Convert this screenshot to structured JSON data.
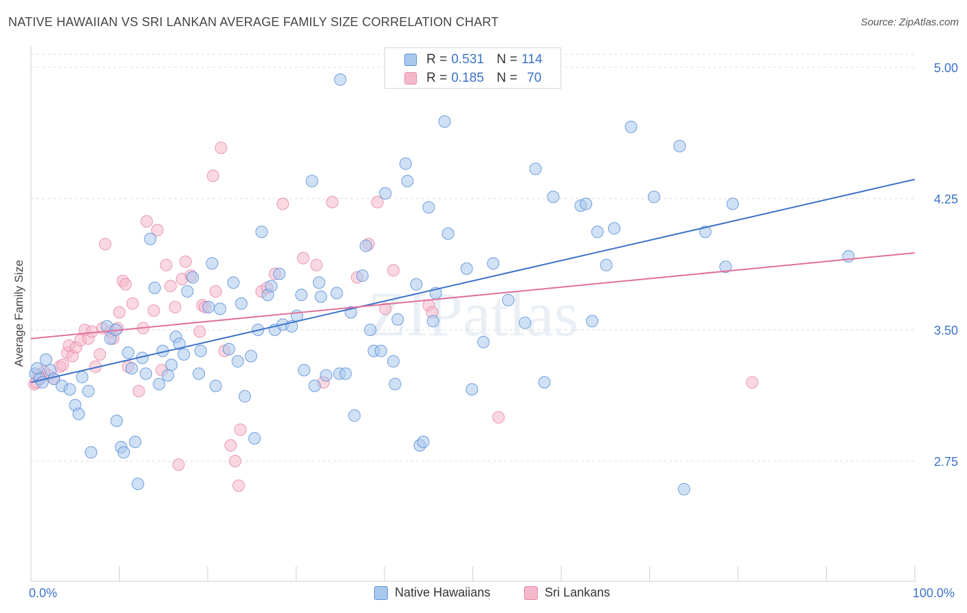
{
  "title": "NATIVE HAWAIIAN VS SRI LANKAN AVERAGE FAMILY SIZE CORRELATION CHART",
  "source": "Source: ZipAtlas.com",
  "legend_top": {
    "rows": [
      {
        "r_label": "R =",
        "r_value": "0.531",
        "n_label": "N =",
        "n_value": "114"
      },
      {
        "r_label": "R =",
        "r_value": "0.185",
        "n_label": "N =",
        "n_value": "70"
      }
    ]
  },
  "legend_bottom": [
    "Native Hawaiians",
    "Sri Lankans"
  ],
  "colors": {
    "blue_fill": "#a9c8ee",
    "blue_stroke": "#5b8fd6",
    "blue_line": "#3b72c9",
    "pink_fill": "#f5b8cb",
    "pink_stroke": "#e58aa7",
    "pink_line": "#e0709a",
    "axis_text": "#3b72c9"
  },
  "chart_data": {
    "type": "scatter",
    "title": "NATIVE HAWAIIAN VS SRI LANKAN AVERAGE FAMILY SIZE CORRELATION CHART",
    "xlabel": "",
    "ylabel": "Average Family Size",
    "x_tick_labels": [
      "0.0%",
      "100.0%"
    ],
    "xlim": [
      0,
      100
    ],
    "ylim": [
      2.0,
      5.1
    ],
    "y_ticks": [
      2.75,
      3.5,
      4.25,
      5.0
    ],
    "y_tick_labels": [
      "2.75",
      "3.50",
      "4.25",
      "5.00"
    ],
    "grid": "horizontal dashed",
    "legend_position": "top-center",
    "watermark": "ZIPatlas",
    "series": [
      {
        "name": "Native Hawaiians",
        "R": 0.531,
        "N": 114,
        "trend": {
          "x": [
            0,
            100
          ],
          "y": [
            3.2,
            4.36
          ]
        },
        "points": [
          [
            0.5,
            3.25
          ],
          [
            0.7,
            3.28
          ],
          [
            1,
            3.22
          ],
          [
            1.3,
            3.2
          ],
          [
            1.7,
            3.33
          ],
          [
            2.2,
            3.27
          ],
          [
            2.6,
            3.22
          ],
          [
            3.5,
            3.18
          ],
          [
            4.4,
            3.16
          ],
          [
            5,
            3.07
          ],
          [
            5.4,
            3.02
          ],
          [
            5.8,
            3.23
          ],
          [
            6.5,
            3.15
          ],
          [
            6.8,
            2.8
          ],
          [
            8.6,
            3.52
          ],
          [
            9,
            3.45
          ],
          [
            9.6,
            3.5
          ],
          [
            9.7,
            2.98
          ],
          [
            10.2,
            2.83
          ],
          [
            10.5,
            2.8
          ],
          [
            11,
            3.37
          ],
          [
            11.4,
            3.28
          ],
          [
            11.8,
            2.86
          ],
          [
            12.1,
            2.62
          ],
          [
            12.6,
            3.34
          ],
          [
            13,
            3.25
          ],
          [
            13.5,
            4.02
          ],
          [
            14,
            3.74
          ],
          [
            14.5,
            3.19
          ],
          [
            14.9,
            3.38
          ],
          [
            15.5,
            3.24
          ],
          [
            15.9,
            3.3
          ],
          [
            16.4,
            3.46
          ],
          [
            16.8,
            3.42
          ],
          [
            17.3,
            3.36
          ],
          [
            17.7,
            3.72
          ],
          [
            18.3,
            3.8
          ],
          [
            19,
            3.25
          ],
          [
            19.2,
            3.38
          ],
          [
            20.1,
            3.63
          ],
          [
            20.5,
            3.88
          ],
          [
            20.9,
            3.18
          ],
          [
            21.4,
            3.62
          ],
          [
            22.4,
            3.39
          ],
          [
            22.9,
            3.77
          ],
          [
            23.4,
            3.32
          ],
          [
            23.8,
            3.65
          ],
          [
            24.2,
            3.12
          ],
          [
            24.9,
            3.35
          ],
          [
            25.3,
            2.88
          ],
          [
            25.7,
            3.5
          ],
          [
            26.1,
            4.06
          ],
          [
            26.8,
            3.7
          ],
          [
            27.2,
            3.75
          ],
          [
            27.6,
            3.5
          ],
          [
            28.1,
            3.82
          ],
          [
            28.5,
            3.53
          ],
          [
            29.5,
            3.52
          ],
          [
            30.1,
            3.58
          ],
          [
            30.6,
            3.7
          ],
          [
            30.9,
            3.27
          ],
          [
            31.8,
            4.35
          ],
          [
            32.1,
            3.18
          ],
          [
            32.6,
            3.77
          ],
          [
            32.8,
            3.69
          ],
          [
            33.4,
            3.24
          ],
          [
            34.6,
            3.71
          ],
          [
            34.9,
            3.25
          ],
          [
            35,
            4.93
          ],
          [
            35.6,
            3.25
          ],
          [
            36.2,
            3.6
          ],
          [
            36.6,
            3.01
          ],
          [
            37.5,
            3.81
          ],
          [
            37.9,
            3.98
          ],
          [
            38.4,
            3.5
          ],
          [
            38.8,
            3.38
          ],
          [
            39.6,
            3.38
          ],
          [
            40.1,
            4.28
          ],
          [
            41,
            3.32
          ],
          [
            41.2,
            3.19
          ],
          [
            41.5,
            3.56
          ],
          [
            42.4,
            4.45
          ],
          [
            42.6,
            4.35
          ],
          [
            43.6,
            3.76
          ],
          [
            44,
            2.84
          ],
          [
            44.4,
            2.86
          ],
          [
            45,
            4.2
          ],
          [
            45.5,
            3.55
          ],
          [
            45.8,
            3.71
          ],
          [
            46.8,
            4.69
          ],
          [
            47.2,
            4.05
          ],
          [
            49.3,
            3.85
          ],
          [
            49.9,
            3.16
          ],
          [
            51.2,
            3.43
          ],
          [
            52.3,
            3.88
          ],
          [
            54,
            3.67
          ],
          [
            55.9,
            3.54
          ],
          [
            57.1,
            4.42
          ],
          [
            58.1,
            3.2
          ],
          [
            59.1,
            4.26
          ],
          [
            62.2,
            4.21
          ],
          [
            62.8,
            4.22
          ],
          [
            63.5,
            3.55
          ],
          [
            64.1,
            4.06
          ],
          [
            65.1,
            3.87
          ],
          [
            66,
            4.08
          ],
          [
            67.9,
            4.66
          ],
          [
            70.5,
            4.26
          ],
          [
            73.4,
            4.55
          ],
          [
            73.9,
            2.59
          ],
          [
            76.3,
            4.06
          ],
          [
            78.6,
            3.86
          ],
          [
            79.4,
            4.22
          ],
          [
            92.5,
            3.92
          ]
        ]
      },
      {
        "name": "Sri Lankans",
        "R": 0.185,
        "N": 70,
        "trend": {
          "x": [
            0,
            100
          ],
          "y": [
            3.45,
            3.94
          ]
        },
        "points": [
          [
            0.4,
            3.19
          ],
          [
            0.6,
            3.2
          ],
          [
            0.8,
            3.24
          ],
          [
            1.1,
            3.23
          ],
          [
            1.5,
            3.26
          ],
          [
            2,
            3.24
          ],
          [
            2.6,
            3.22
          ],
          [
            3.3,
            3.29
          ],
          [
            3.6,
            3.3
          ],
          [
            4.1,
            3.37
          ],
          [
            4.3,
            3.41
          ],
          [
            4.7,
            3.35
          ],
          [
            5.1,
            3.4
          ],
          [
            5.6,
            3.44
          ],
          [
            6.1,
            3.5
          ],
          [
            6.5,
            3.45
          ],
          [
            6.9,
            3.49
          ],
          [
            7.3,
            3.29
          ],
          [
            7.8,
            3.36
          ],
          [
            8.1,
            3.51
          ],
          [
            8.4,
            3.99
          ],
          [
            9,
            3.49
          ],
          [
            9.3,
            3.45
          ],
          [
            9.8,
            3.51
          ],
          [
            10,
            3.6
          ],
          [
            10.4,
            3.78
          ],
          [
            10.7,
            3.76
          ],
          [
            11,
            3.29
          ],
          [
            11.5,
            3.65
          ],
          [
            12.2,
            3.15
          ],
          [
            12.7,
            3.51
          ],
          [
            13.1,
            4.12
          ],
          [
            13.9,
            3.61
          ],
          [
            14.3,
            4.07
          ],
          [
            14.8,
            3.27
          ],
          [
            15.3,
            3.87
          ],
          [
            15.8,
            3.75
          ],
          [
            16.3,
            3.63
          ],
          [
            16.7,
            2.73
          ],
          [
            17.1,
            3.79
          ],
          [
            17.5,
            3.89
          ],
          [
            18.1,
            3.81
          ],
          [
            19.1,
            3.49
          ],
          [
            19.4,
            3.64
          ],
          [
            19.7,
            3.63
          ],
          [
            20.6,
            4.38
          ],
          [
            20.9,
            3.72
          ],
          [
            21.5,
            4.54
          ],
          [
            21.9,
            3.38
          ],
          [
            22.6,
            2.84
          ],
          [
            23.1,
            2.75
          ],
          [
            23.5,
            2.61
          ],
          [
            23.7,
            2.93
          ],
          [
            26.1,
            3.72
          ],
          [
            26.7,
            3.74
          ],
          [
            27.6,
            3.82
          ],
          [
            28.5,
            4.22
          ],
          [
            30.8,
            3.91
          ],
          [
            32.3,
            3.87
          ],
          [
            33.1,
            3.2
          ],
          [
            34.1,
            4.23
          ],
          [
            36.9,
            3.8
          ],
          [
            38.2,
            3.99
          ],
          [
            39.2,
            4.23
          ],
          [
            40.1,
            3.62
          ],
          [
            41,
            3.84
          ],
          [
            45,
            3.64
          ],
          [
            45.4,
            3.6
          ],
          [
            52.9,
            3.0
          ],
          [
            81.6,
            3.2
          ]
        ]
      }
    ]
  }
}
